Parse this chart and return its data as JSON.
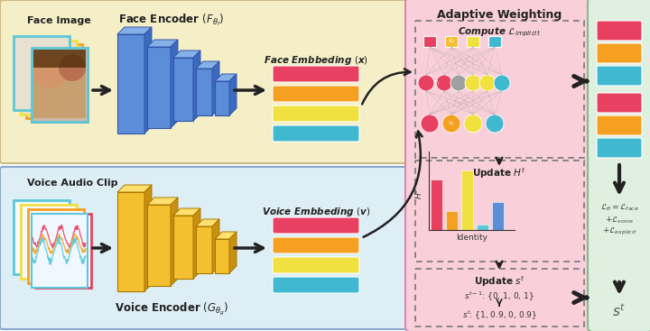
{
  "fig_width": 7.2,
  "fig_height": 3.67,
  "dpi": 100,
  "bg_color": "#ffffff",
  "top_panel_color": "#f5efc8",
  "bottom_panel_color": "#ddeef5",
  "adaptive_panel_color": "#f9d0da",
  "output_panel_color": "#e0f0e0",
  "blue_face": "#5b8dd9",
  "blue_face_light": "#85b0e8",
  "blue_face_dark": "#3a6bbf",
  "yellow_voice": "#f5c030",
  "yellow_voice_light": "#ffe070",
  "yellow_voice_dark": "#c89010",
  "red": "#e84060",
  "orange": "#f5a020",
  "yellow": "#f0e040",
  "cyan": "#40b8d0",
  "gray_nn": "#a0a0a0",
  "face_frame_colors": [
    "#e84060",
    "#f5a020",
    "#f0e040",
    "#40b8d0"
  ],
  "voice_frame_colors": [
    "#e84060",
    "#f5a020",
    "#f0e040",
    "#40b8d0"
  ],
  "face_emb_colors": [
    "#e84060",
    "#f5a020",
    "#f0e040",
    "#40b8d0"
  ],
  "voice_emb_colors": [
    "#e84060",
    "#f5a020",
    "#f0e040",
    "#40b8d0"
  ],
  "out_bar_colors": [
    "#e84060",
    "#f5a020",
    "#40b8d0",
    "#e84060",
    "#f5a020",
    "#40b8d0"
  ],
  "title_face_enc": "Face Encoder $(F_{\\theta_f})$",
  "title_voice_enc": "Voice Encoder $(G_{\\theta_g})$",
  "label_face_img": "Face Image",
  "label_face_emb": "Face Embbeding $({\\boldsymbol{x}})$",
  "label_voice_clip": "Voice Audio Clip",
  "label_voice_emb": "Voice Embbeding $({\\boldsymbol{v}})$",
  "label_adaptive": "Adaptive Weighting",
  "label_compute": "Compute $\\mathcal{L}_{implicit}$",
  "label_update_h": "Update $H^t$",
  "label_identity": "Identity",
  "label_update_s": "Update $s^t$",
  "label_s_prev": "$s^{t-1}$: {0, 1, 0, 1}",
  "label_s_curr": "$s^t$: {1, 0.9, 0, 0.9}",
  "label_loss": "$\\mathcal{L}_{\\theta} = \\mathcal{L}_{face}$\n$+ \\mathcal{L}_{voice}$\n$+ \\mathcal{L}_{explicit}$",
  "label_st": "$s^t$"
}
